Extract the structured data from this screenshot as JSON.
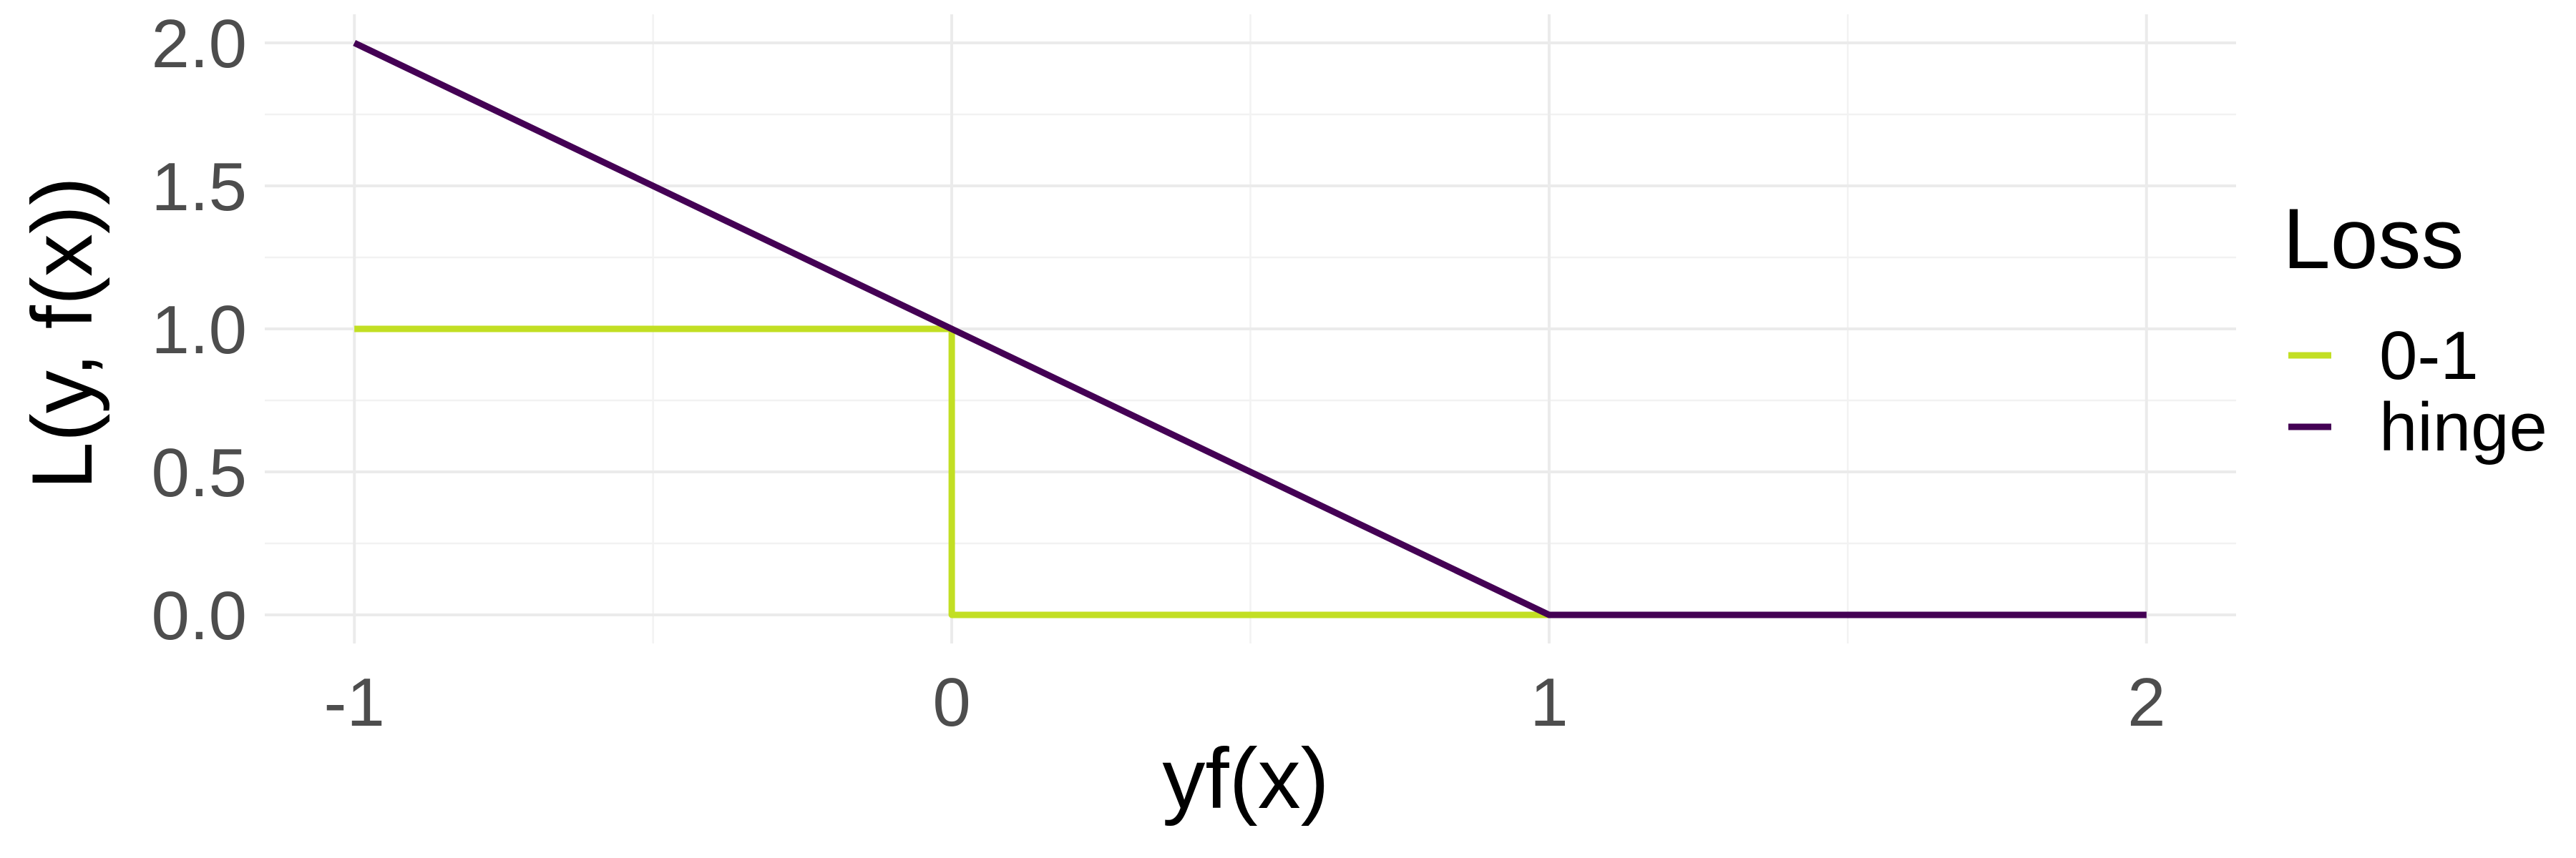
{
  "chart_data": {
    "type": "line",
    "xlabel": "yf(x)",
    "ylabel": "L(y, f(x))",
    "xlim": [
      -1.15,
      2.15
    ],
    "ylim": [
      -0.1,
      2.1
    ],
    "x_ticks": [
      -1,
      0,
      1,
      2
    ],
    "x_tick_labels": [
      "-1",
      "0",
      "1",
      "2"
    ],
    "y_ticks": [
      0,
      0.5,
      1,
      1.5,
      2
    ],
    "y_tick_labels": [
      "0.0",
      "0.5",
      "1.0",
      "1.5",
      "2.0"
    ],
    "grid": true,
    "legend": {
      "title": "Loss",
      "position": "right"
    },
    "series": [
      {
        "name": "0-1",
        "color": "#c2df23",
        "x": [
          -1,
          0,
          0,
          1
        ],
        "y": [
          1,
          1,
          0,
          0
        ]
      },
      {
        "name": "hinge",
        "color": "#440154",
        "x": [
          -1,
          1,
          2
        ],
        "y": [
          2,
          0,
          0
        ]
      }
    ]
  }
}
